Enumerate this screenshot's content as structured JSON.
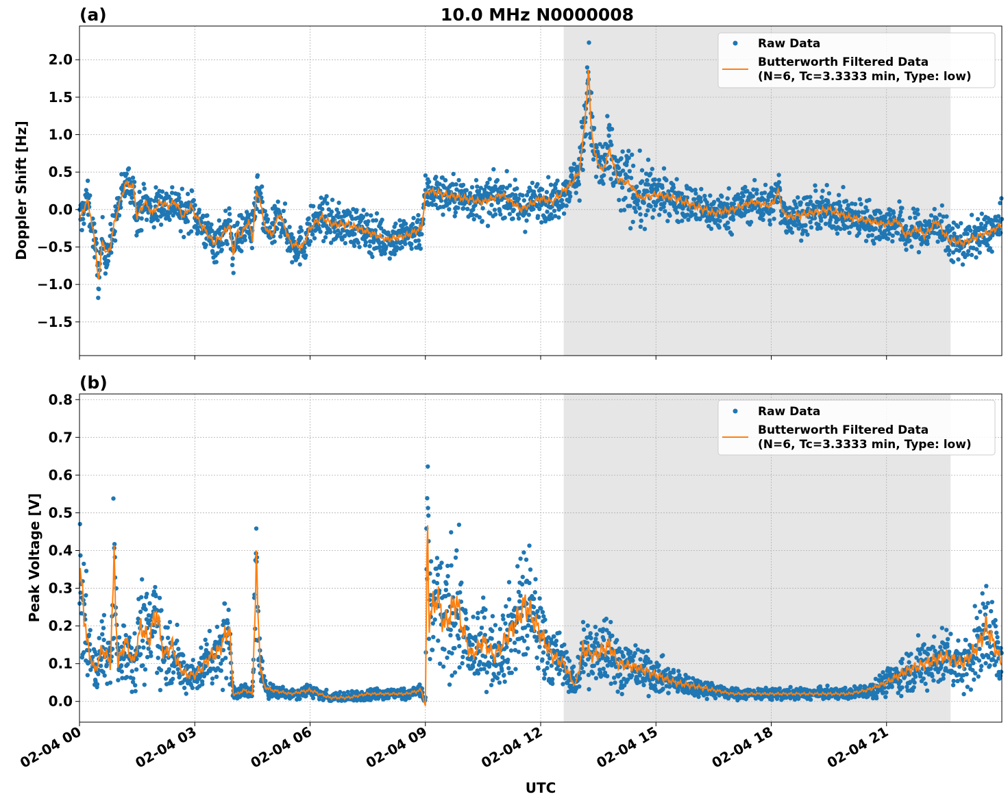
{
  "figure": {
    "title": "10.0 MHz N0000008",
    "xlabel": "UTC",
    "x_tick_labels": [
      "02-04 00",
      "02-04 03",
      "02-04 06",
      "02-04 09",
      "02-04 12",
      "02-04 15",
      "02-04 18",
      "02-04 21"
    ],
    "colors": {
      "raw": "#1f77b4",
      "filtered": "#ff7f0e",
      "shade": "#e6e6e6",
      "grid": "#b0b0b0"
    },
    "legend": {
      "raw_label": "Raw Data",
      "filtered_label_line1": "Butterworth Filtered Data",
      "filtered_label_line2": "(N=6, Tc=3.3333 min, Type: low)"
    }
  },
  "chart_data": [
    {
      "type": "scatter",
      "panel_label": "(a)",
      "ylabel": "Doppler Shift [Hz]",
      "xlim": [
        "2024-02-04 00:00",
        "2024-02-05 00:00"
      ],
      "ylim": [
        -1.95,
        2.45
      ],
      "y_ticks": [
        -1.5,
        -1.0,
        -0.5,
        0.0,
        0.5,
        1.0,
        1.5,
        2.0
      ],
      "y_tick_labels": [
        "−1.5",
        "−1.0",
        "−0.5",
        "0.0",
        "0.5",
        "1.0",
        "1.5",
        "2.0"
      ],
      "grid": true,
      "legend_position": "upper right",
      "shaded_x_range": [
        "2024-02-04 12:36",
        "2024-02-04 22:40"
      ],
      "filtered_series": {
        "name": "Butterworth Filtered Data",
        "x_hours": [
          0,
          0.1,
          0.2,
          0.3,
          0.4,
          0.5,
          0.6,
          0.7,
          0.8,
          0.9,
          1.0,
          1.2,
          1.4,
          1.5,
          1.7,
          1.9,
          2.1,
          2.3,
          2.5,
          2.7,
          2.9,
          3.1,
          3.3,
          3.5,
          3.7,
          3.9,
          4.0,
          4.1,
          4.2,
          4.4,
          4.5,
          4.6,
          4.7,
          4.8,
          5.0,
          5.2,
          5.5,
          5.8,
          6.0,
          6.3,
          6.6,
          7.0,
          7.5,
          8.0,
          8.5,
          8.9,
          9.0,
          9.1,
          9.5,
          10.0,
          10.5,
          11.0,
          11.5,
          12.0,
          12.3,
          12.6,
          12.8,
          13.0,
          13.1,
          13.2,
          13.25,
          13.3,
          13.4,
          13.6,
          13.8,
          14.0,
          14.3,
          14.6,
          15.0,
          15.5,
          16.0,
          16.5,
          17.0,
          17.5,
          18.0,
          18.2,
          18.3,
          18.5,
          19.0,
          19.5,
          20.0,
          20.5,
          21.0,
          21.3,
          21.5,
          21.8,
          22.0,
          22.3,
          22.6,
          23.0,
          23.4,
          23.7,
          24.0
        ],
        "y": [
          -0.15,
          0.0,
          0.12,
          -0.1,
          -0.45,
          -0.95,
          -0.4,
          -0.6,
          -0.5,
          -0.2,
          0.0,
          0.35,
          0.3,
          -0.1,
          0.1,
          -0.05,
          0.1,
          0.05,
          0.1,
          -0.1,
          0.05,
          -0.15,
          -0.3,
          -0.45,
          -0.35,
          -0.2,
          -0.6,
          -0.3,
          -0.35,
          -0.15,
          -0.4,
          0.2,
          0.15,
          -0.2,
          -0.35,
          -0.05,
          -0.45,
          -0.5,
          -0.25,
          -0.1,
          -0.2,
          -0.2,
          -0.3,
          -0.4,
          -0.35,
          -0.25,
          0.2,
          0.25,
          0.2,
          0.15,
          0.1,
          0.2,
          0.0,
          0.15,
          0.1,
          0.25,
          0.35,
          0.5,
          0.9,
          1.5,
          1.9,
          1.2,
          0.75,
          0.5,
          0.8,
          0.4,
          0.35,
          0.15,
          0.2,
          0.15,
          0.05,
          -0.05,
          0.0,
          0.1,
          0.05,
          0.25,
          -0.05,
          -0.1,
          -0.05,
          0.0,
          -0.1,
          -0.15,
          -0.2,
          -0.15,
          -0.35,
          -0.25,
          -0.35,
          -0.15,
          -0.4,
          -0.45,
          -0.35,
          -0.3,
          -0.2
        ]
      }
    },
    {
      "type": "scatter",
      "panel_label": "(b)",
      "ylabel": "Peak Voltage [V]",
      "xlim": [
        "2024-02-04 00:00",
        "2024-02-05 00:00"
      ],
      "ylim": [
        -0.055,
        0.815
      ],
      "y_ticks": [
        0.0,
        0.1,
        0.2,
        0.3,
        0.4,
        0.5,
        0.6,
        0.7,
        0.8
      ],
      "y_tick_labels": [
        "0.0",
        "0.1",
        "0.2",
        "0.3",
        "0.4",
        "0.5",
        "0.6",
        "0.7",
        "0.8"
      ],
      "grid": true,
      "legend_position": "upper right",
      "shaded_x_range": [
        "2024-02-04 12:36",
        "2024-02-04 22:40"
      ],
      "filtered_series": {
        "name": "Butterworth Filtered Data",
        "x_hours": [
          0,
          0.05,
          0.2,
          0.4,
          0.6,
          0.8,
          0.9,
          1.0,
          1.2,
          1.4,
          1.6,
          1.8,
          2.0,
          2.2,
          2.4,
          2.6,
          2.8,
          3.0,
          3.2,
          3.4,
          3.6,
          3.9,
          4.0,
          4.1,
          4.3,
          4.5,
          4.6,
          4.7,
          4.8,
          5.0,
          5.5,
          6.0,
          6.5,
          7.0,
          7.5,
          8.0,
          8.5,
          8.9,
          9.0,
          9.05,
          9.1,
          9.3,
          9.5,
          9.8,
          10.0,
          10.2,
          10.5,
          10.8,
          11.0,
          11.3,
          11.6,
          12.0,
          12.3,
          12.6,
          12.9,
          13.1,
          13.4,
          13.8,
          14.0,
          14.5,
          15.0,
          15.5,
          16.0,
          16.5,
          17.0,
          17.5,
          18.0,
          18.5,
          19.0,
          19.5,
          20.0,
          20.5,
          21.0,
          21.5,
          22.0,
          22.5,
          23.0,
          23.4,
          23.6,
          24.0
        ],
        "y": [
          0.3,
          0.32,
          0.15,
          0.08,
          0.14,
          0.1,
          0.36,
          0.1,
          0.16,
          0.1,
          0.2,
          0.16,
          0.24,
          0.12,
          0.15,
          0.09,
          0.07,
          0.07,
          0.09,
          0.12,
          0.13,
          0.2,
          0.02,
          0.02,
          0.03,
          0.02,
          0.35,
          0.1,
          0.04,
          0.03,
          0.02,
          0.03,
          0.01,
          0.01,
          0.02,
          0.02,
          0.02,
          0.03,
          -0.015,
          0.48,
          0.22,
          0.28,
          0.2,
          0.27,
          0.18,
          0.12,
          0.16,
          0.12,
          0.15,
          0.2,
          0.26,
          0.18,
          0.12,
          0.1,
          0.04,
          0.14,
          0.12,
          0.15,
          0.1,
          0.09,
          0.07,
          0.05,
          0.04,
          0.03,
          0.02,
          0.02,
          0.02,
          0.02,
          0.02,
          0.02,
          0.02,
          0.03,
          0.05,
          0.08,
          0.1,
          0.12,
          0.1,
          0.15,
          0.2,
          0.1
        ]
      }
    }
  ]
}
